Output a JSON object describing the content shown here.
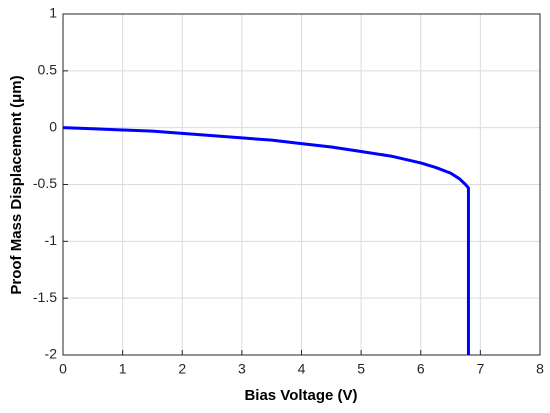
{
  "chart_data": {
    "type": "line",
    "x_label": "Bias Voltage (V)",
    "y_label": "Proof Mass Displacement (μm)",
    "x": [
      0,
      0.5,
      1,
      1.5,
      2,
      2.5,
      3,
      3.5,
      4,
      4.5,
      5,
      5.5,
      6,
      6.25,
      6.5,
      6.65,
      6.75,
      6.8,
      6.8
    ],
    "series": [
      {
        "color": "#0000ff",
        "values": [
          0,
          -0.01,
          -0.02,
          -0.03,
          -0.05,
          -0.07,
          -0.09,
          -0.11,
          -0.14,
          -0.17,
          -0.21,
          -0.25,
          -0.31,
          -0.35,
          -0.4,
          -0.45,
          -0.5,
          -0.53,
          -2
        ]
      }
    ],
    "xlim": [
      0,
      8
    ],
    "xticks": [
      0,
      1,
      2,
      3,
      4,
      5,
      6,
      7,
      8
    ],
    "ylim": [
      -2,
      1
    ],
    "yticks": [
      -2,
      -1.5,
      -1,
      -0.5,
      0,
      0.5,
      1
    ],
    "grid": true
  }
}
